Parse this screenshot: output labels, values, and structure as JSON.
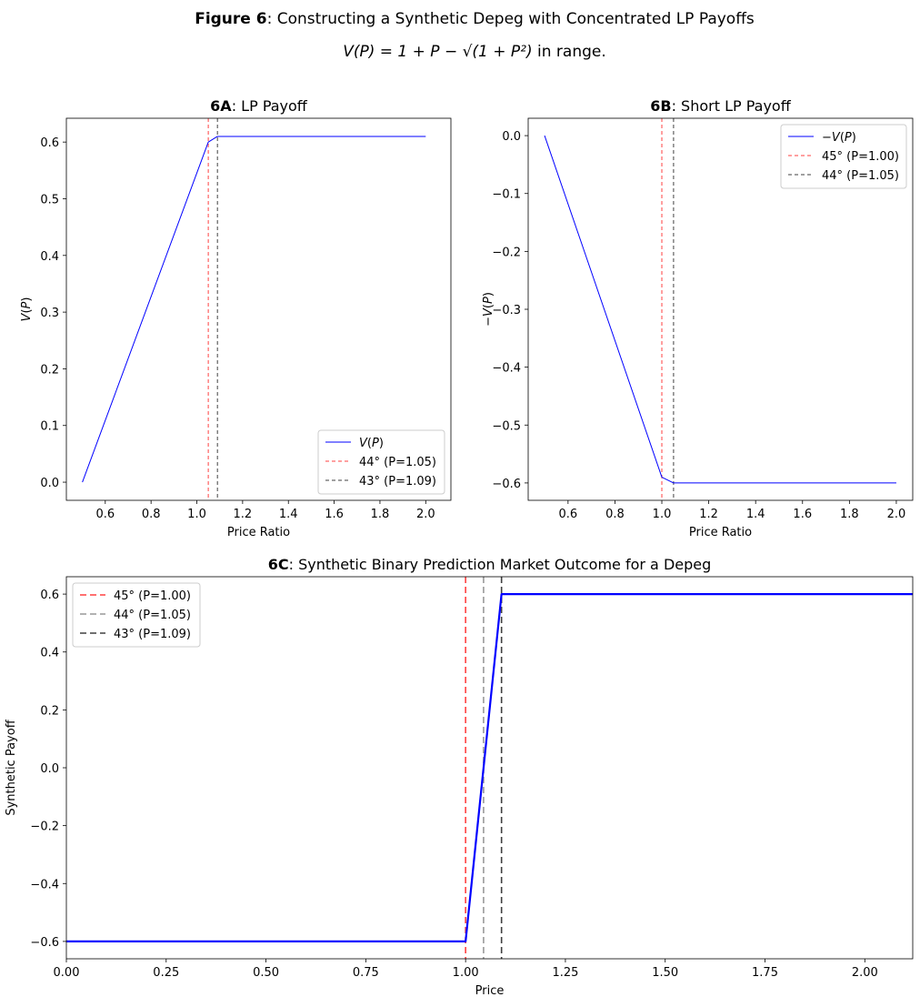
{
  "figure": {
    "title_bold": "Figure 6",
    "title_rest": ": Constructing a Synthetic Depeg with Concentrated LP Payoffs",
    "formula": "V(P) = 1 + P − √(1 + P²)",
    "formula_suffix": " in range."
  },
  "chart_data": [
    {
      "id": "6A",
      "type": "line",
      "title_bold": "6A",
      "title_rest": ": LP Payoff",
      "xlabel": "Price Ratio",
      "ylabel": "V(P)",
      "xlim": [
        0.43,
        2.11
      ],
      "ylim": [
        -0.032,
        0.642
      ],
      "xticks": [
        0.6,
        0.8,
        1.0,
        1.2,
        1.4,
        1.6,
        1.8,
        2.0
      ],
      "xtick_labels": [
        "0.6",
        "0.8",
        "1.0",
        "1.2",
        "1.4",
        "1.6",
        "1.8",
        "2.0"
      ],
      "yticks": [
        0.0,
        0.1,
        0.2,
        0.3,
        0.4,
        0.5,
        0.6
      ],
      "ytick_labels": [
        "0.0",
        "0.1",
        "0.2",
        "0.3",
        "0.4",
        "0.5",
        "0.6"
      ],
      "legend_position": "lower right",
      "series": [
        {
          "name": "V(P)",
          "kind": "line",
          "color": "#0000ff",
          "x": [
            0.5,
            1.05,
            1.09,
            2.0
          ],
          "y": [
            0.0,
            0.6,
            0.61,
            0.61
          ]
        }
      ],
      "vlines": [
        {
          "name": "44° (P=1.05)",
          "x": 1.05,
          "color": "#ff0000"
        },
        {
          "name": "43° (P=1.09)",
          "x": 1.09,
          "color": "#000000"
        }
      ]
    },
    {
      "id": "6B",
      "type": "line",
      "title_bold": "6B",
      "title_rest": ": Short LP Payoff",
      "xlabel": "Price Ratio",
      "ylabel": "−V(P)",
      "xlim": [
        0.43,
        2.07
      ],
      "ylim": [
        -0.63,
        0.03
      ],
      "xticks": [
        0.6,
        0.8,
        1.0,
        1.2,
        1.4,
        1.6,
        1.8,
        2.0
      ],
      "xtick_labels": [
        "0.6",
        "0.8",
        "1.0",
        "1.2",
        "1.4",
        "1.6",
        "1.8",
        "2.0"
      ],
      "yticks": [
        0.0,
        -0.1,
        -0.2,
        -0.3,
        -0.4,
        -0.5,
        -0.6
      ],
      "ytick_labels": [
        "0.0",
        "−0.1",
        "−0.2",
        "−0.3",
        "−0.4",
        "−0.5",
        "−0.6"
      ],
      "legend_position": "upper right",
      "series": [
        {
          "name": "−V(P)",
          "kind": "line",
          "color": "#0000ff",
          "x": [
            0.5,
            1.0,
            1.05,
            2.0
          ],
          "y": [
            0.0,
            -0.59,
            -0.6,
            -0.6
          ]
        }
      ],
      "vlines": [
        {
          "name": "45° (P=1.00)",
          "x": 1.0,
          "color": "#ff0000"
        },
        {
          "name": "44° (P=1.05)",
          "x": 1.05,
          "color": "#000000"
        }
      ]
    },
    {
      "id": "6C",
      "type": "line",
      "title_bold": "6C",
      "title_rest": ": Synthetic Binary Prediction Market Outcome for a Depeg",
      "xlabel": "Price",
      "ylabel": "Synthetic Payoff",
      "xlim": [
        0.0,
        2.12
      ],
      "ylim": [
        -0.66,
        0.66
      ],
      "xticks": [
        0.0,
        0.25,
        0.5,
        0.75,
        1.0,
        1.25,
        1.5,
        1.75,
        2.0
      ],
      "xtick_labels": [
        "0.00",
        "0.25",
        "0.50",
        "0.75",
        "1.00",
        "1.25",
        "1.50",
        "1.75",
        "2.00"
      ],
      "yticks": [
        0.6,
        0.4,
        0.2,
        0.0,
        -0.2,
        -0.4,
        -0.6
      ],
      "ytick_labels": [
        "0.6",
        "0.4",
        "0.2",
        "0.0",
        "−0.2",
        "−0.4",
        "−0.6"
      ],
      "legend_position": "upper left",
      "series": [
        {
          "name": "",
          "kind": "line",
          "color": "#0000ff",
          "x": [
            0.0,
            1.0,
            1.09,
            2.12
          ],
          "y": [
            -0.6,
            -0.6,
            0.6,
            0.6
          ]
        }
      ],
      "vlines": [
        {
          "name": "45° (P=1.00)",
          "x": 1.0,
          "color": "#ff0000"
        },
        {
          "name": "44° (P=1.05)",
          "x": 1.045,
          "color": "#808080"
        },
        {
          "name": "43° (P=1.09)",
          "x": 1.09,
          "color": "#000000"
        }
      ]
    }
  ]
}
